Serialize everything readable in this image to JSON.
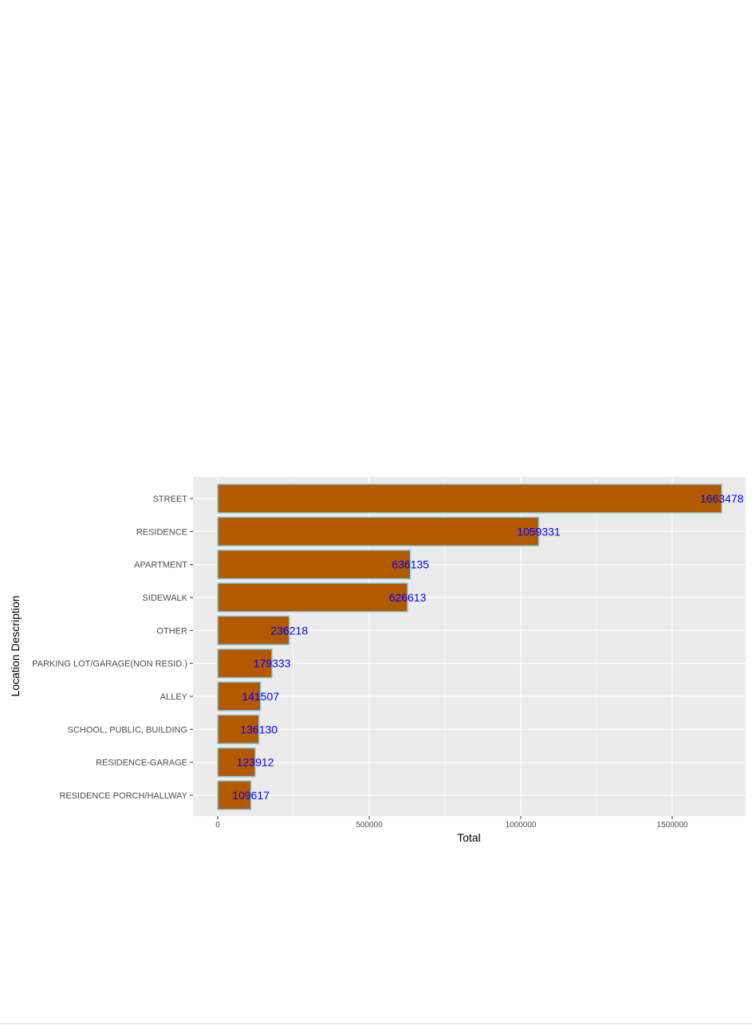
{
  "chart_data": {
    "type": "bar",
    "orientation": "horizontal",
    "categories": [
      "STREET",
      "RESIDENCE",
      "APARTMENT",
      "SIDEWALK",
      "OTHER",
      "PARKING LOT/GARAGE(NON RESID.)",
      "ALLEY",
      "SCHOOL, PUBLIC, BUILDING",
      "RESIDENCE-GARAGE",
      "RESIDENCE PORCH/HALLWAY"
    ],
    "values": [
      1663478,
      1059331,
      636135,
      626613,
      236218,
      179333,
      141507,
      136130,
      123912,
      109617
    ],
    "data_labels": [
      "1663478",
      "1059331",
      "636135",
      "626613",
      "236218",
      "179333",
      "141507",
      "136130",
      "123912",
      "109617"
    ],
    "xlabel": "Total",
    "ylabel": "Location Description",
    "xlim": [
      -80000,
      1750000
    ],
    "x_ticks": [
      0,
      500000,
      1000000,
      1500000
    ],
    "x_tick_labels": [
      "0",
      "500000",
      "1000000",
      "1500000"
    ],
    "grid": true,
    "legend": "none",
    "colors": {
      "bar_fill": "#b35900",
      "bar_outline": "#87ceeb",
      "data_label": "#0000ff",
      "panel_background": "#ebebeb",
      "grid_line": "#ffffff"
    }
  }
}
